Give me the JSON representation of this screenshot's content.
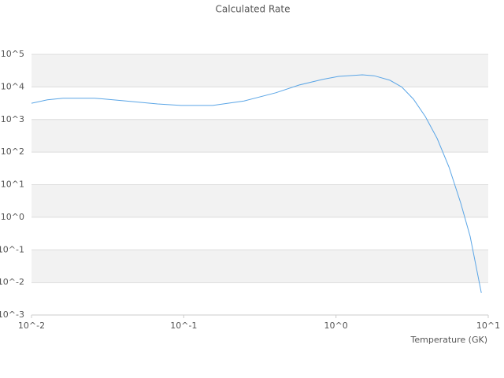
{
  "chart_data": {
    "type": "line",
    "title": "Calculated Rate",
    "x_label": "Temperature (GK)",
    "x": [
      0.01,
      0.0127,
      0.0161,
      0.026,
      0.0418,
      0.0673,
      0.096,
      0.155,
      0.249,
      0.402,
      0.574,
      0.82,
      1.04,
      1.49,
      1.78,
      2.26,
      2.7,
      3.23,
      3.86,
      4.62,
      5.52,
      6.6,
      7.6,
      9.0
    ],
    "series": [
      {
        "color": "#5aa5e6",
        "values": [
          3162,
          4000,
          4500,
          4500,
          3700,
          3000,
          2700,
          2700,
          3700,
          6600,
          11500,
          17000,
          21000,
          23500,
          22000,
          16000,
          10000,
          4200,
          1230,
          260,
          35,
          2.7,
          0.26,
          0.0048
        ]
      }
    ],
    "xscale": "log",
    "yscale": "log",
    "xlim": [
      0.01,
      10
    ],
    "ylim": [
      0.001,
      100000
    ],
    "xticks": [
      {
        "value": 0.01,
        "label": "10^-2"
      },
      {
        "value": 0.1,
        "label": "10^-1"
      },
      {
        "value": 1,
        "label": "10^0"
      },
      {
        "value": 10,
        "label": "10^1"
      }
    ],
    "yticks": [
      {
        "value": 0.001,
        "label": "10^-3"
      },
      {
        "value": 0.01,
        "label": "10^-2"
      },
      {
        "value": 0.1,
        "label": "10^-1"
      },
      {
        "value": 1,
        "label": "10^0"
      },
      {
        "value": 10,
        "label": "10^1"
      },
      {
        "value": 100,
        "label": "10^2"
      },
      {
        "value": 1000,
        "label": "10^3"
      },
      {
        "value": 10000,
        "label": "10^4"
      },
      {
        "value": 100000,
        "label": "10^5"
      }
    ],
    "grid": true
  }
}
